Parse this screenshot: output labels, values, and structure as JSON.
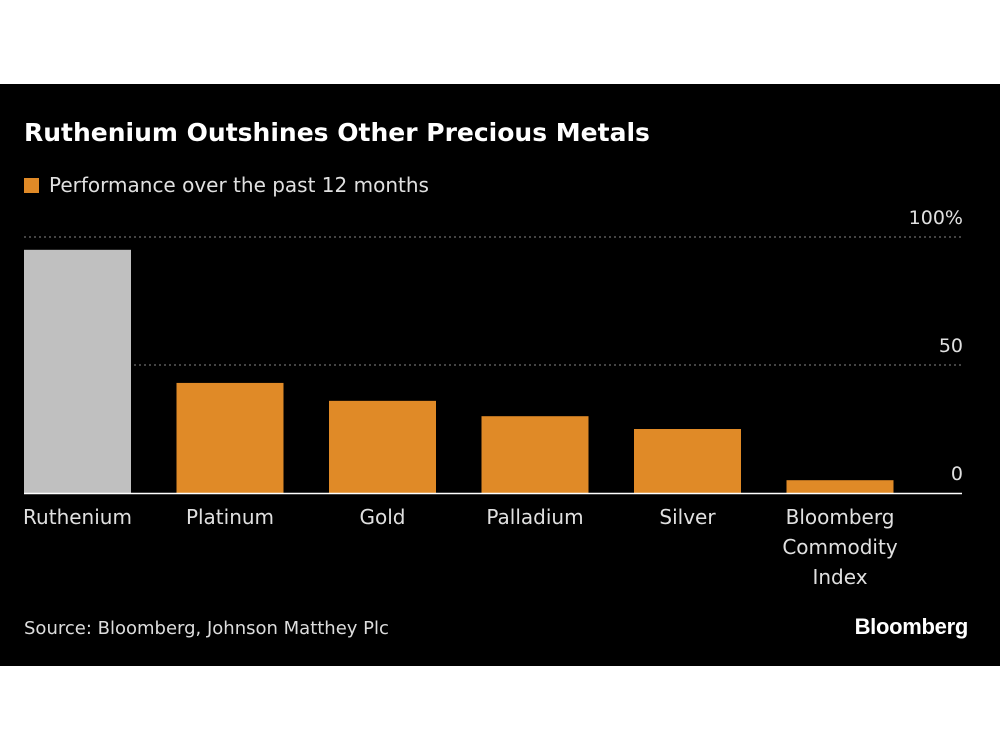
{
  "title": "Ruthenium Outshines Other Precious Metals",
  "legend": {
    "label": "Performance over the past 12 months",
    "color": "#e08a27"
  },
  "source": "Source: Bloomberg, Johnson Matthey Plc",
  "brand": "Bloomberg",
  "colors": {
    "background": "#000000",
    "bar": "#e08a27",
    "highlight_bar": "#c0c0c0",
    "gridline": "#888888",
    "axis_text": "#e0e0e0"
  },
  "chart_data": {
    "type": "bar",
    "categories": [
      "Ruthenium",
      "Platinum",
      "Gold",
      "Palladium",
      "Silver",
      "Bloomberg Commodity Index"
    ],
    "values": [
      95,
      43,
      36,
      30,
      25,
      5
    ],
    "highlight_index": 0,
    "ylim": [
      0,
      100
    ],
    "yticks": [
      0,
      50,
      100
    ],
    "ytick_labels": [
      "0",
      "50",
      "100%"
    ],
    "grid": true,
    "xlabel": "",
    "ylabel": ""
  }
}
